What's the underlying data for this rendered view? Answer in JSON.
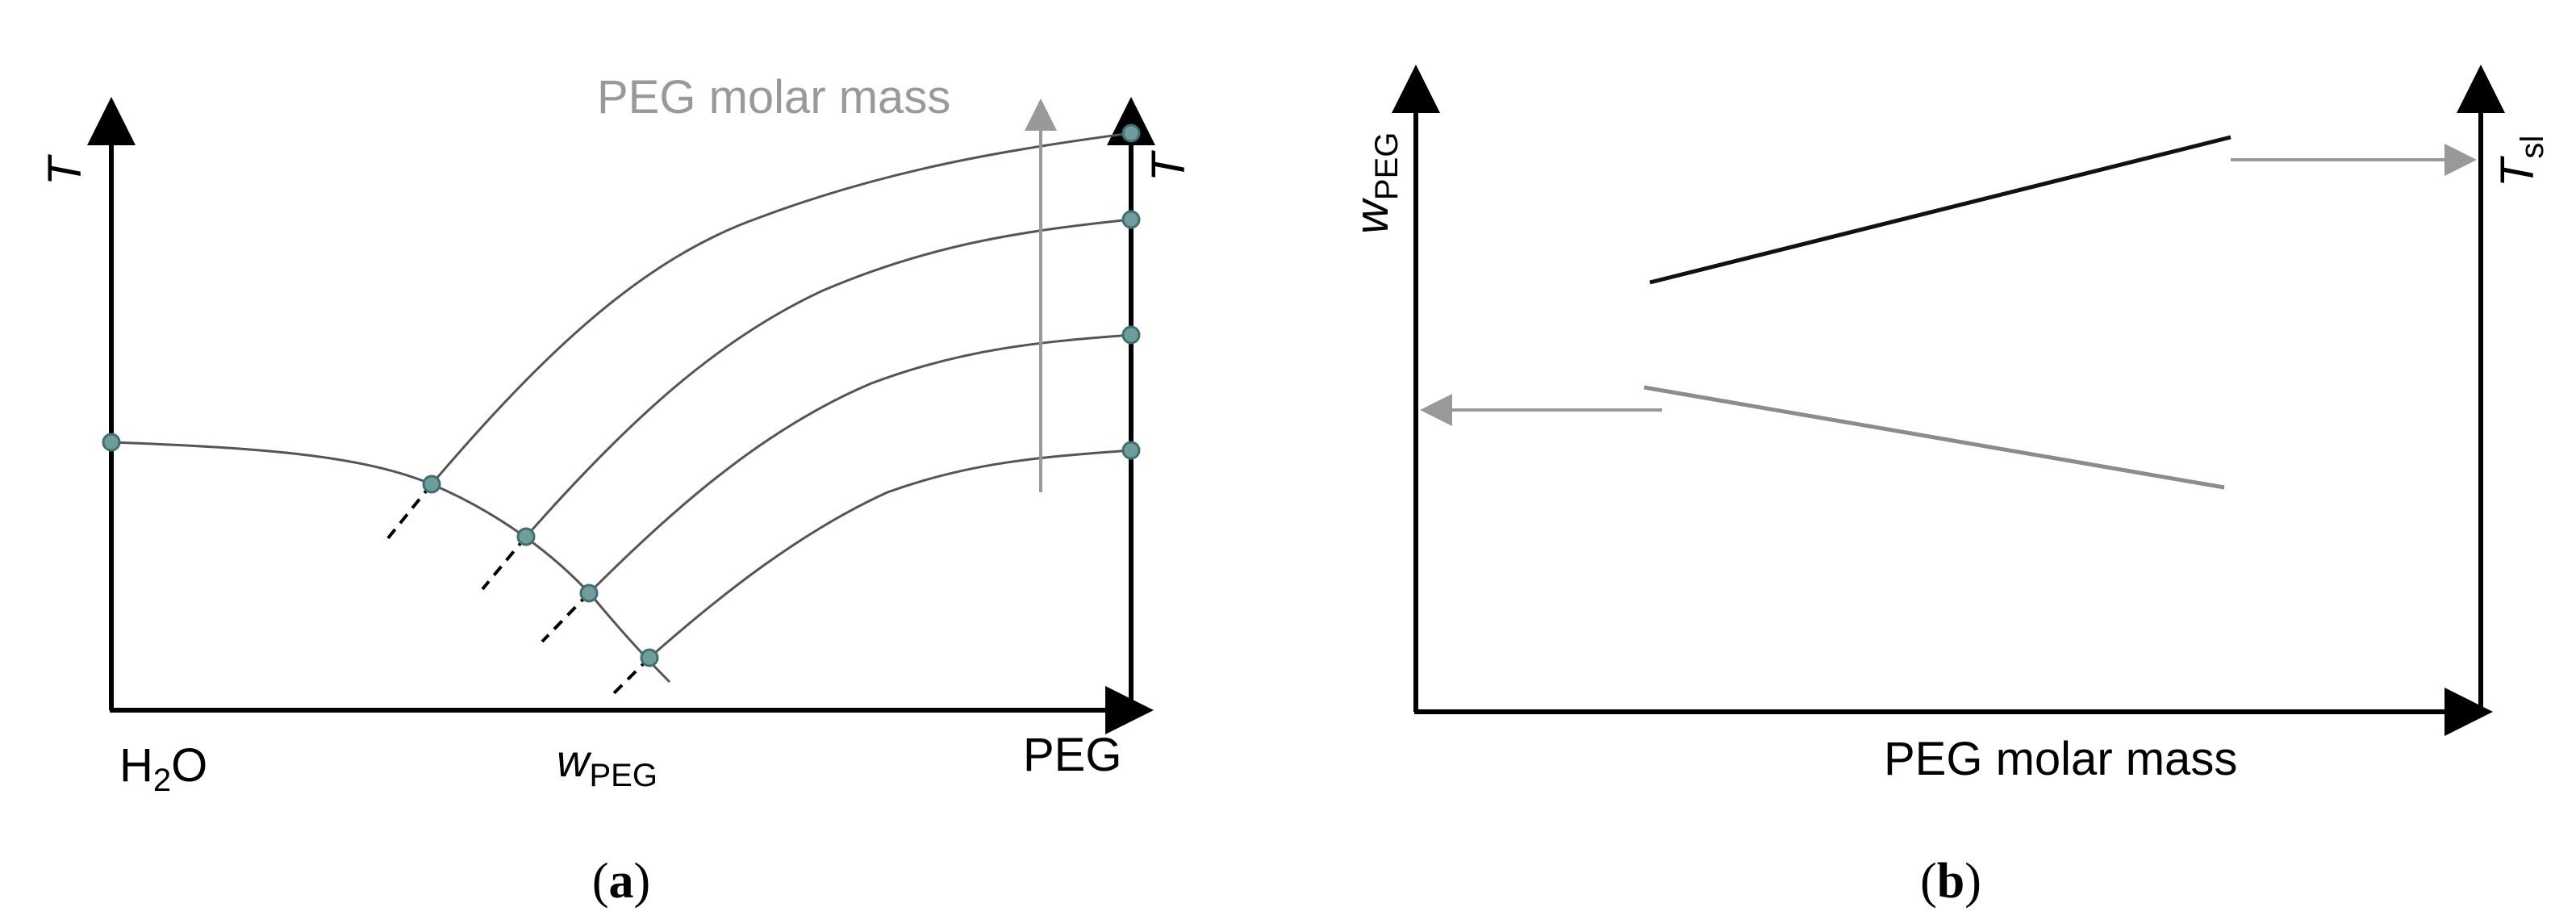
{
  "panel_a": {
    "caption_open": "(",
    "caption_letter": "a",
    "caption_close": ")",
    "y_axis_left_label": "T",
    "y_axis_right_label": "T",
    "x_left_label_prefix": "H",
    "x_left_label_sub": "2",
    "x_left_label_suffix": "O",
    "x_mid_label_main": "w",
    "x_mid_label_sub": "PEG",
    "x_right_label": "PEG",
    "arrow_label": "PEG molar mass",
    "curve_count": 4
  },
  "panel_b": {
    "caption_open": "(",
    "caption_letter": "b",
    "caption_close": ")",
    "y_axis_left_main": "w",
    "y_axis_left_sub": "PEG",
    "y_axis_right_main": "T",
    "y_axis_right_sub": "sl",
    "x_axis_label": "PEG molar mass"
  },
  "colors": {
    "axis": "#000000",
    "curve": "#555555",
    "grey_arrow": "#999999",
    "grey_line": "#8c8c8c",
    "black_line": "#111111",
    "marker_fill": "#6f9c9c",
    "marker_stroke": "#3f6f6f",
    "label_grey": "#999999"
  }
}
